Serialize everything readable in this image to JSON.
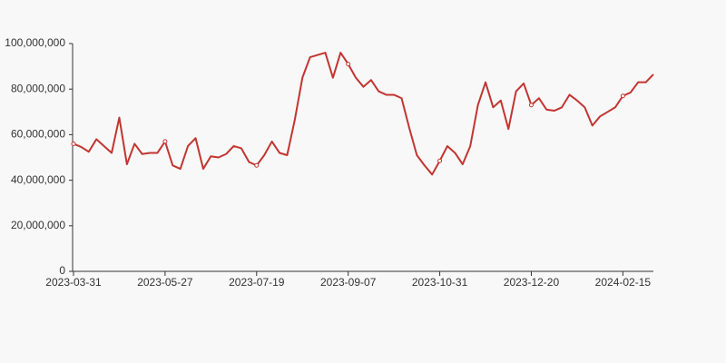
{
  "chart_data": {
    "type": "line",
    "categories": [
      "2023-03-31",
      null,
      null,
      null,
      null,
      null,
      null,
      null,
      null,
      null,
      null,
      null,
      "2023-05-27",
      null,
      null,
      null,
      null,
      null,
      null,
      null,
      null,
      null,
      null,
      null,
      "2023-07-19",
      null,
      null,
      null,
      null,
      null,
      null,
      null,
      null,
      null,
      null,
      null,
      "2023-09-07",
      null,
      null,
      null,
      null,
      null,
      null,
      null,
      null,
      null,
      null,
      null,
      "2023-10-31",
      null,
      null,
      null,
      null,
      null,
      null,
      null,
      null,
      null,
      null,
      null,
      "2023-12-20",
      null,
      null,
      null,
      null,
      null,
      null,
      null,
      null,
      null,
      null,
      null,
      "2024-02-15",
      null,
      null,
      null,
      null
    ],
    "series": [
      {
        "color": "#c23531",
        "values": [
          56000000,
          54600000,
          52500000,
          58000000,
          55000000,
          52000000,
          67500000,
          47000000,
          56000000,
          51500000,
          52000000,
          52000000,
          57000000,
          46500000,
          45000000,
          55000000,
          58500000,
          45000000,
          50500000,
          50000000,
          51500000,
          55000000,
          54000000,
          48000000,
          46500000,
          51000000,
          57000000,
          52000000,
          51000000,
          66500000,
          85000000,
          94000000,
          95000000,
          96000000,
          85000000,
          96000000,
          91000000,
          85000000,
          81000000,
          84000000,
          79000000,
          77500000,
          77500000,
          76000000,
          63000000,
          51000000,
          46500000,
          42500000,
          48500000,
          55000000,
          52000000,
          47000000,
          55000000,
          73000000,
          83000000,
          72000000,
          75000000,
          62500000,
          79000000,
          82500000,
          73000000,
          76000000,
          71000000,
          70500000,
          72000000,
          77500000,
          75000000,
          72000000,
          64000000,
          68000000,
          70000000,
          72000000,
          77000000,
          78500000,
          83000000,
          83000000,
          86500000
        ]
      }
    ],
    "ylim": [
      0,
      100000000
    ],
    "yticks": [
      0,
      {
        "value": 20000000,
        "label": "20,000,000"
      },
      {
        "value": 40000000,
        "label": "40,000,000"
      },
      {
        "value": 60000000,
        "label": "60,000,000"
      },
      {
        "value": 80000000,
        "label": "80,000,000"
      },
      {
        "value": 100000000,
        "label": "100,000,000"
      }
    ],
    "grid": false
  }
}
